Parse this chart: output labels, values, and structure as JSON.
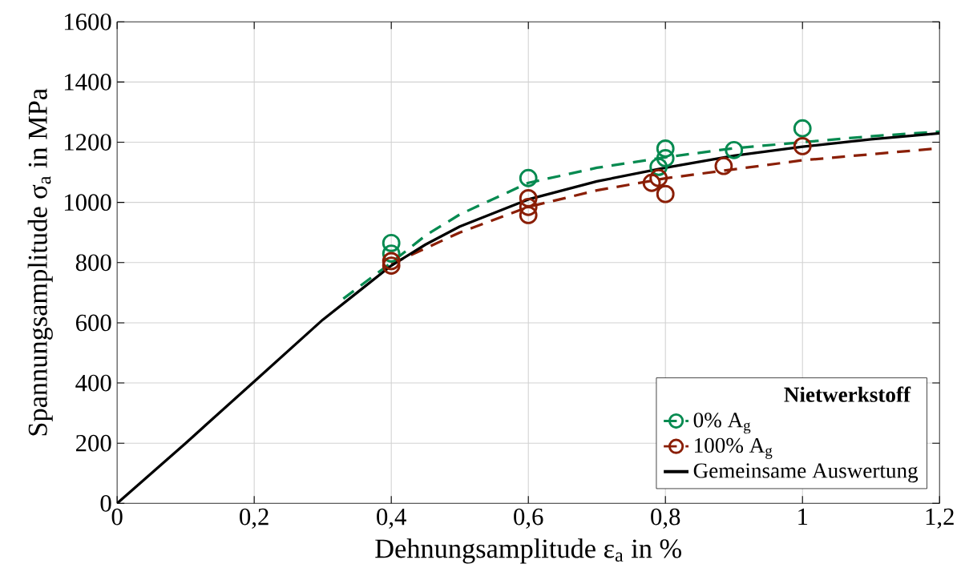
{
  "chart_data": {
    "type": "scatter",
    "xlabel": "Dehnungsamplitude ε$_{a}$ in %",
    "ylabel": "Spannungsamplitude σ$_{a}$ in MPa",
    "legend_title": "**Nietwerkstoff**",
    "xlim": [
      0,
      1.2
    ],
    "ylim": [
      0,
      1600
    ],
    "xticks": [
      0,
      {
        "value": 0.2,
        "label": "0,2"
      },
      {
        "value": 0.4,
        "label": "0,4"
      },
      {
        "value": 0.6,
        "label": "0,6"
      },
      {
        "value": 0.8,
        "label": "0,8"
      },
      1,
      {
        "value": 1.2,
        "label": "1,2"
      }
    ],
    "yticks": [
      0,
      200,
      400,
      600,
      800,
      1000,
      1200,
      1400,
      1600
    ],
    "grid": true,
    "legend": "bottom right",
    "marker": "circle",
    "series": [
      {
        "type": "line",
        "color": "#058a50",
        "line_style": "dashed",
        "marker": "none",
        "x": [
          0.33,
          0.4,
          0.45,
          0.5,
          0.6,
          0.7,
          0.8,
          0.9,
          1.0,
          1.1,
          1.2
        ],
        "values": [
          680,
          800,
          890,
          960,
          1065,
          1115,
          1150,
          1180,
          1200,
          1220,
          1235
        ]
      },
      {
        "type": "line",
        "color": "#8a1e05",
        "line_style": "dashed",
        "marker": "none",
        "x": [
          0.4,
          0.5,
          0.6,
          0.7,
          0.8,
          0.9,
          1.0,
          1.1,
          1.2
        ],
        "values": [
          795,
          900,
          985,
          1040,
          1080,
          1110,
          1140,
          1160,
          1180
        ]
      },
      {
        "name": "0% A$_{g}$",
        "color": "#058a50",
        "x": [
          0.4,
          0.4,
          0.6,
          0.8,
          0.8,
          0.79,
          0.9,
          1.0
        ],
        "values": [
          865,
          830,
          1081,
          1179,
          1147,
          1118,
          1174,
          1246
        ]
      },
      {
        "name": "100% A$_{g}$",
        "color": "#8a1e05",
        "x": [
          0.4,
          0.4,
          0.6,
          0.6,
          0.6,
          0.79,
          0.78,
          0.8,
          0.885,
          1.0
        ],
        "values": [
          805,
          790,
          1014,
          985,
          958,
          1081,
          1065,
          1028,
          1121,
          1187
        ]
      },
      {
        "name": "Gemeinsame Auswertung",
        "type": "line",
        "color": "#000000",
        "line_style": "solid",
        "marker": "none",
        "x": [
          0,
          0.1,
          0.2,
          0.3,
          0.35,
          0.4,
          0.45,
          0.5,
          0.6,
          0.7,
          0.8,
          0.9,
          1.0,
          1.1,
          1.2
        ],
        "values": [
          0,
          200,
          405,
          610,
          700,
          790,
          860,
          920,
          1010,
          1070,
          1115,
          1155,
          1185,
          1210,
          1230
        ]
      }
    ]
  }
}
